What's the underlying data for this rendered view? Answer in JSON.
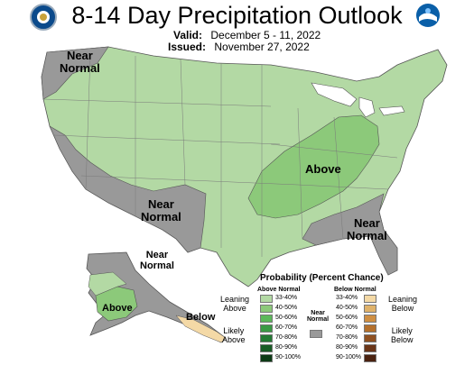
{
  "header": {
    "title": "8-14 Day Precipitation Outlook",
    "valid_label": "Valid:",
    "valid_value": "December 5 - 11, 2022",
    "issued_label": "Issued:",
    "issued_value": "November 27, 2022"
  },
  "logos": {
    "left": "doc-seal-icon",
    "right": "noaa-logo-icon"
  },
  "map_labels": {
    "nw_near_normal": "Near\nNormal",
    "sw_near_normal": "Near\nNormal",
    "se_near_normal": "Near\nNormal",
    "above_main": "Above",
    "ak_near_normal": "Near\nNormal",
    "ak_above": "Above",
    "ak_below": "Below"
  },
  "legend": {
    "title": "Probability (Percent Chance)",
    "above_header": "Above Normal",
    "below_header": "Below Normal",
    "near_header": "Near\nNormal",
    "leaning_above": "Leaning\nAbove",
    "likely_above": "Likely\nAbove",
    "leaning_below": "Leaning\nBelow",
    "likely_below": "Likely\nBelow",
    "above_ranges": [
      "33-40%",
      "40-50%",
      "50-60%",
      "60-70%",
      "70-80%",
      "80-90%",
      "90-100%"
    ],
    "below_ranges": [
      "33-40%",
      "40-50%",
      "50-60%",
      "60-70%",
      "70-80%",
      "80-90%",
      "90-100%"
    ],
    "above_colors": [
      "#b3d9a4",
      "#8cc97a",
      "#5cb85a",
      "#3a9a44",
      "#237a33",
      "#185c25",
      "#0d3b16"
    ],
    "below_colors": [
      "#f4d9a6",
      "#dfb26b",
      "#cf8f43",
      "#b4702c",
      "#8f5021",
      "#6a3518",
      "#4a2210"
    ],
    "near_color": "#999999"
  },
  "map_colors": {
    "leaning_above": "#b3d9a4",
    "above_40_50": "#8cc97a",
    "near_normal": "#999999",
    "lakes": "#ffffff",
    "borders": "#555555"
  }
}
